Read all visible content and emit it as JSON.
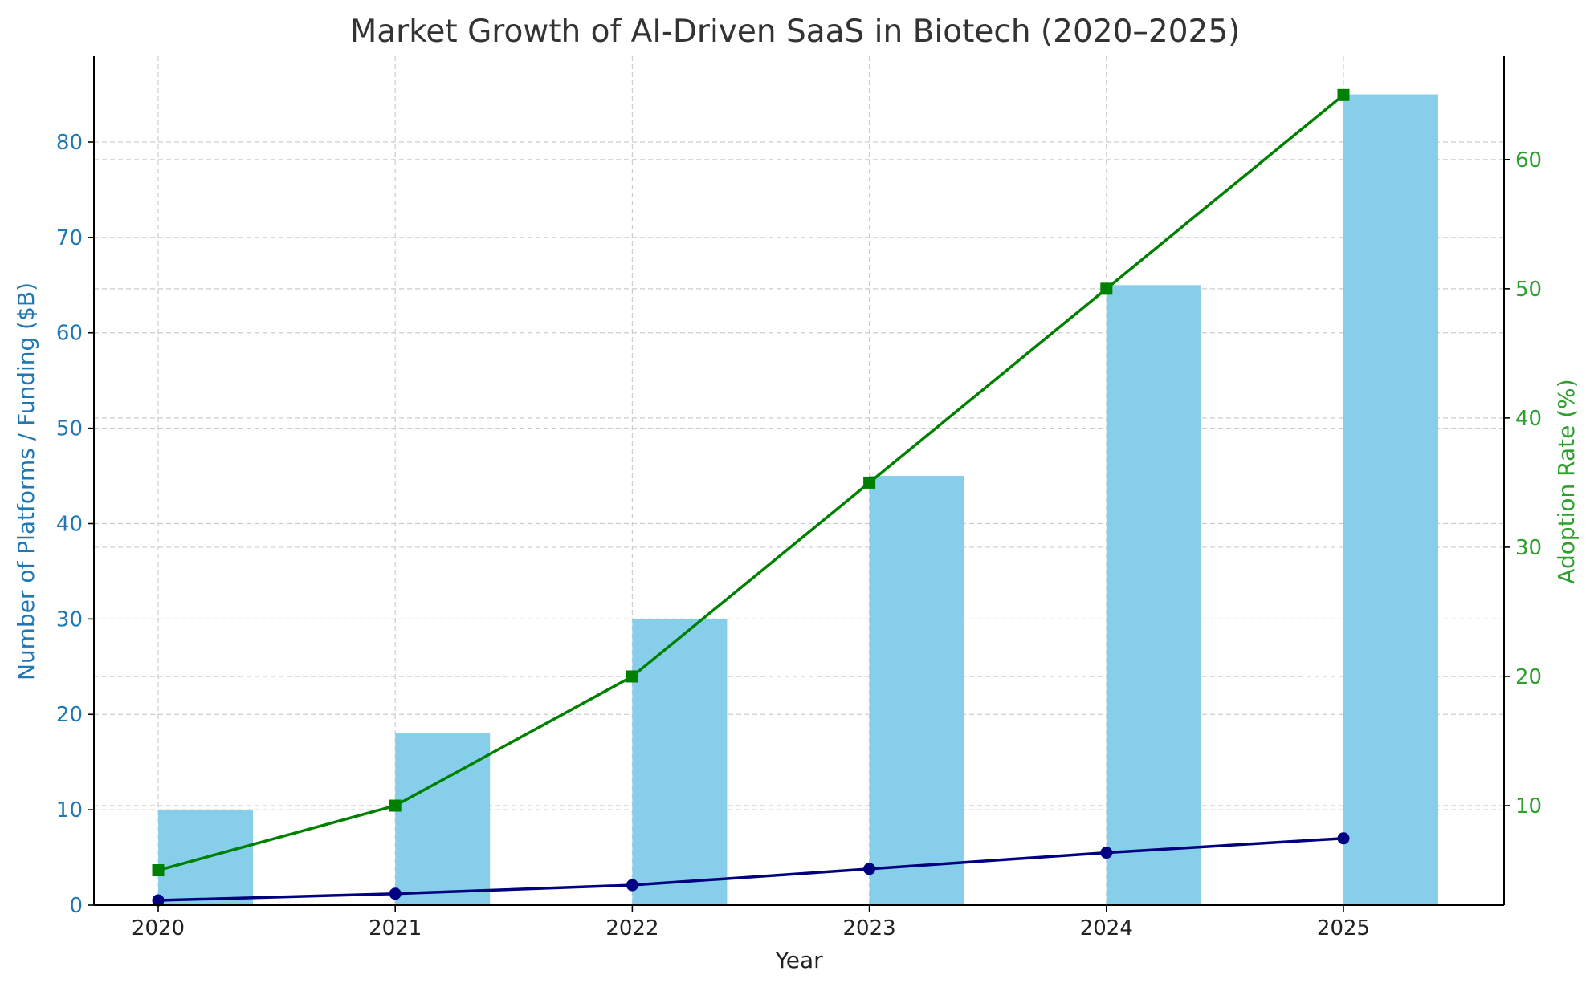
{
  "chart_data": {
    "type": "bar",
    "title": "Market Growth of AI-Driven SaaS in Biotech (2020–2025)",
    "xlabel": "Year",
    "ylabel": "Number of Platforms / Funding ($B)",
    "ylabel_right": "Adoption Rate (%)",
    "categories": [
      "2020",
      "2021",
      "2022",
      "2023",
      "2024",
      "2025"
    ],
    "ylim": [
      0,
      89
    ],
    "ylim_right": [
      2.3,
      68
    ],
    "yticks": [
      0,
      10,
      20,
      30,
      40,
      50,
      60,
      70,
      80
    ],
    "yticks_right": [
      10,
      20,
      30,
      40,
      50,
      60
    ],
    "grid": true,
    "series": [
      {
        "type": "bar",
        "axis": "left",
        "color": "#87ceeb",
        "values": [
          10,
          18,
          30,
          45,
          65,
          85
        ]
      },
      {
        "type": "line",
        "axis": "left",
        "marker": "circle",
        "color": "#000080",
        "values": [
          0.5,
          1.2,
          2.1,
          3.8,
          5.5,
          7.0
        ]
      },
      {
        "type": "line",
        "axis": "right",
        "marker": "square",
        "color": "#008000",
        "values": [
          5,
          10,
          20,
          35,
          50,
          65
        ]
      }
    ],
    "colors": {
      "left_axis": "#1f77b4",
      "right_axis": "#2ca02c",
      "grid": "#cccccc",
      "text": "#333333"
    }
  }
}
